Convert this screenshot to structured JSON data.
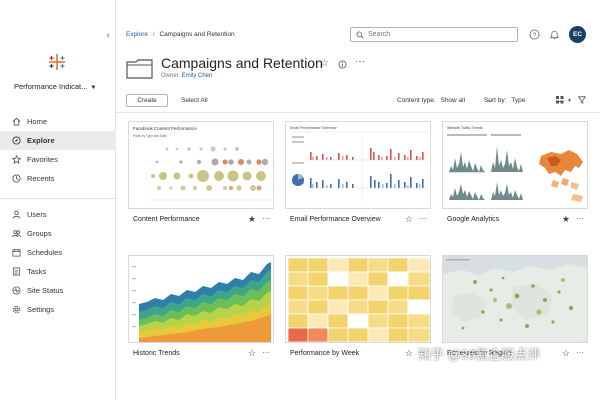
{
  "sidebar": {
    "site_name": "Performance Indicat...",
    "nav_primary": [
      {
        "label": "Home",
        "icon": "home-icon"
      },
      {
        "label": "Explore",
        "icon": "compass-icon",
        "active": true
      },
      {
        "label": "Favorites",
        "icon": "star-icon"
      },
      {
        "label": "Recents",
        "icon": "clock-icon"
      }
    ],
    "nav_secondary": [
      {
        "label": "Users",
        "icon": "users-icon"
      },
      {
        "label": "Groups",
        "icon": "groups-icon"
      },
      {
        "label": "Schedules",
        "icon": "calendar-icon"
      },
      {
        "label": "Tasks",
        "icon": "tasks-icon"
      },
      {
        "label": "Site Status",
        "icon": "status-icon"
      },
      {
        "label": "Settings",
        "icon": "gear-icon"
      }
    ]
  },
  "header": {
    "breadcrumb_root": "Explore",
    "breadcrumb_sep": "/",
    "breadcrumb_current": "Campaigns and Retention",
    "search_placeholder": "Search",
    "avatar_initials": "EC"
  },
  "page": {
    "title": "Campaigns and Retention",
    "owner_label": "Owner",
    "owner_name": "Emily Chen"
  },
  "toolbar": {
    "create_label": "Create",
    "select_all_label": "Select All",
    "content_type_label": "Content type:",
    "content_type_value": "Show all",
    "sort_label": "Sort by:",
    "sort_value": "Type"
  },
  "cards": [
    {
      "title": "Content Performance",
      "favorited": true,
      "thumb_title": "Facebook Content Performance",
      "thumb_subtitle": "Posts by Type and Date"
    },
    {
      "title": "Email Performance Overview",
      "favorited": false,
      "thumb_title": "Email Performance Overview"
    },
    {
      "title": "Google Analytics",
      "favorited": true,
      "thumb_title": "Website Traffic Trends"
    },
    {
      "title": "Historic Trends",
      "favorited": false
    },
    {
      "title": "Performance by Week",
      "favorited": false
    },
    {
      "title": "Renewals by Region",
      "favorited": false
    }
  ],
  "watermark": "知乎 @36氪企服点评",
  "colors": {
    "accent_blue": "#1f5fa8",
    "avatar_bg": "#1c3f68",
    "active_nav_bg": "#ebebeb"
  }
}
